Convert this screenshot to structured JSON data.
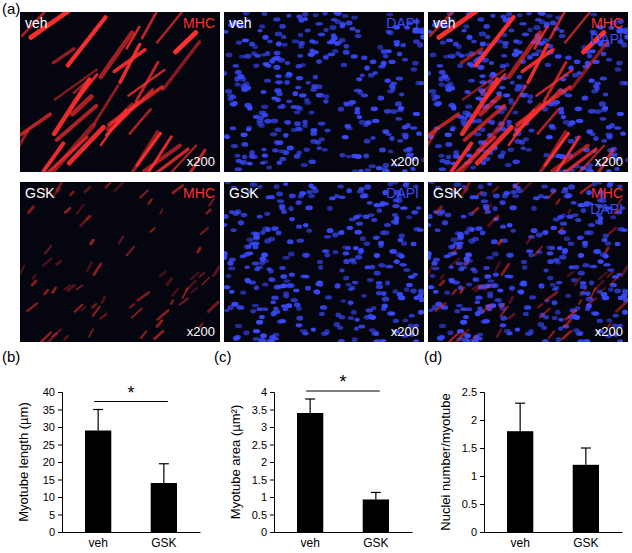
{
  "images": {
    "title": "(a)",
    "rows": [
      {
        "label": "veh",
        "panels": [
          {
            "stains": [
              {
                "name": "MHC",
                "color": "#ff3030"
              }
            ],
            "magnification": "x200"
          },
          {
            "stains": [
              {
                "name": "DAPI",
                "color": "#3a4bff"
              }
            ],
            "magnification": "x200"
          },
          {
            "stains": [
              {
                "name": "MHC",
                "color": "#ff3030"
              },
              {
                "name": "DAPI",
                "color": "#3a4bff"
              }
            ],
            "magnification": "x200"
          }
        ]
      },
      {
        "label": "GSK",
        "panels": [
          {
            "stains": [
              {
                "name": "MHC",
                "color": "#ff3030"
              }
            ],
            "magnification": "x200"
          },
          {
            "stains": [
              {
                "name": "DAPI",
                "color": "#3a4bff"
              }
            ],
            "magnification": "x200"
          },
          {
            "stains": [
              {
                "name": "MHC",
                "color": "#ff3030"
              },
              {
                "name": "DAPI",
                "color": "#3a4bff"
              }
            ],
            "magnification": "x200"
          }
        ]
      }
    ]
  },
  "chart_data": [
    {
      "type": "bar",
      "title": "(b)",
      "y_label": "Myotube length (µm)",
      "categories": [
        "veh",
        "GSK"
      ],
      "values": [
        29,
        14
      ],
      "errors": [
        6,
        5.5
      ],
      "color": "#000000",
      "ylim": [
        0,
        40
      ],
      "yticks": [
        0,
        5,
        10,
        15,
        20,
        25,
        30,
        35,
        40
      ],
      "annotation": "*"
    },
    {
      "type": "bar",
      "title": "(c)",
      "y_label": "Myotube area (µm²)",
      "categories": [
        "veh",
        "GSK"
      ],
      "values": [
        3.4,
        0.93
      ],
      "errors": [
        0.4,
        0.2
      ],
      "color": "#000000",
      "ylim": [
        0,
        4
      ],
      "yticks": [
        0,
        0.5,
        1,
        1.5,
        2,
        2.5,
        3,
        3.5,
        4
      ],
      "annotation": "*"
    },
    {
      "type": "bar",
      "title": "(d)",
      "y_label": "Nuclei number/myotube",
      "categories": [
        "veh",
        "GSK"
      ],
      "values": [
        1.8,
        1.2
      ],
      "errors": [
        0.5,
        0.3
      ],
      "color": "#000000",
      "ylim": [
        0,
        2.5
      ],
      "yticks": [
        0,
        0.5,
        1,
        1.5,
        2,
        2.5
      ]
    }
  ]
}
